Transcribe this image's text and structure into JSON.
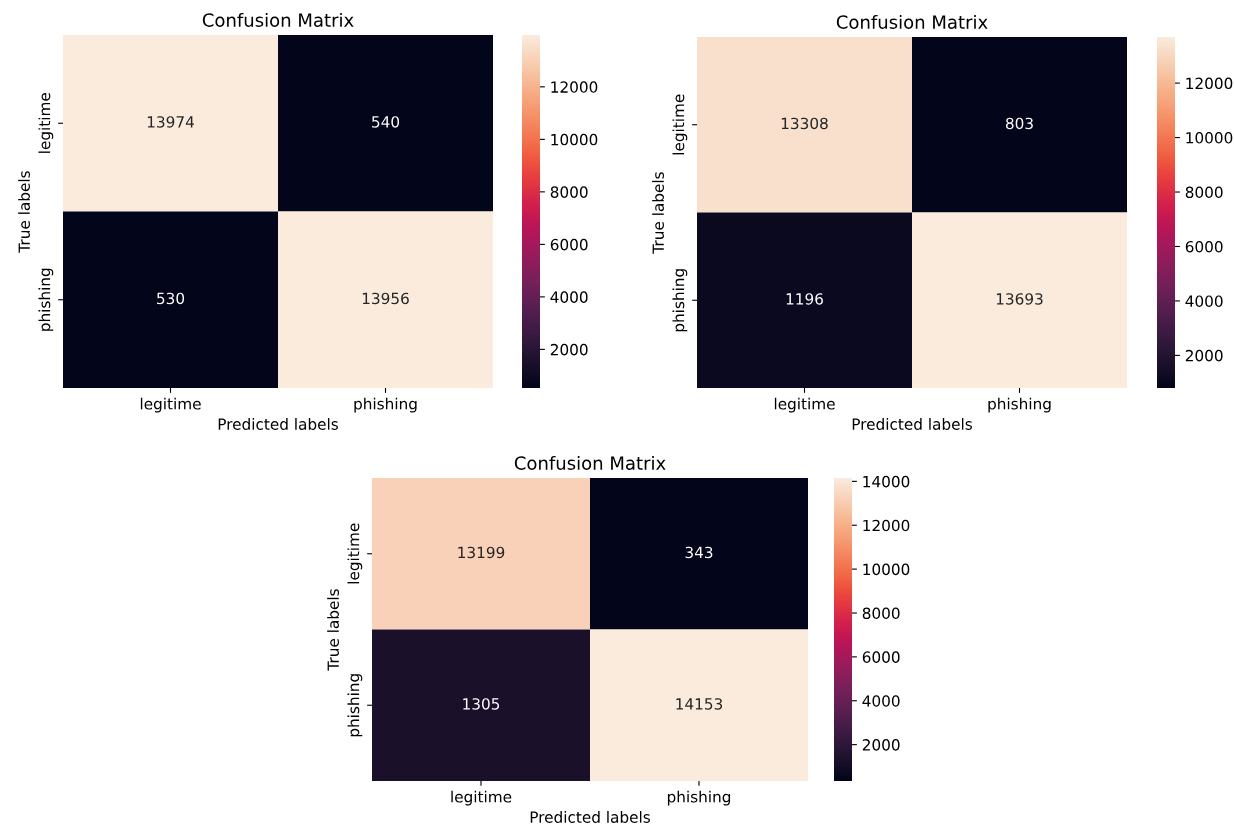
{
  "chart_data": [
    {
      "type": "heatmap",
      "title": "Confusion Matrix",
      "xlabel": "Predicted labels",
      "ylabel": "True labels",
      "categories": [
        "legitime",
        "phishing"
      ],
      "y_categories": [
        "legitime",
        "phishing"
      ],
      "cells": [
        [
          13974,
          540
        ],
        [
          530,
          13956
        ]
      ],
      "clim": [
        530,
        13974
      ],
      "cticks": [
        2000,
        4000,
        6000,
        8000,
        10000,
        12000
      ],
      "data_labels": true
    },
    {
      "type": "heatmap",
      "title": "Confusion Matrix",
      "xlabel": "Predicted labels",
      "ylabel": "True labels",
      "categories": [
        "legitime",
        "phishing"
      ],
      "y_categories": [
        "legitime",
        "phishing"
      ],
      "cells": [
        [
          13308,
          803
        ],
        [
          1196,
          13693
        ]
      ],
      "clim": [
        803,
        13693
      ],
      "cticks": [
        2000,
        4000,
        6000,
        8000,
        10000,
        12000
      ],
      "data_labels": true
    },
    {
      "type": "heatmap",
      "title": "Confusion Matrix",
      "xlabel": "Predicted labels",
      "ylabel": "True labels",
      "categories": [
        "legitime",
        "phishing"
      ],
      "y_categories": [
        "legitime",
        "phishing"
      ],
      "cells": [
        [
          13199,
          343
        ],
        [
          1305,
          14153
        ]
      ],
      "clim": [
        343,
        14153
      ],
      "cticks": [
        2000,
        4000,
        6000,
        8000,
        10000,
        12000,
        14000
      ],
      "data_labels": true
    }
  ]
}
